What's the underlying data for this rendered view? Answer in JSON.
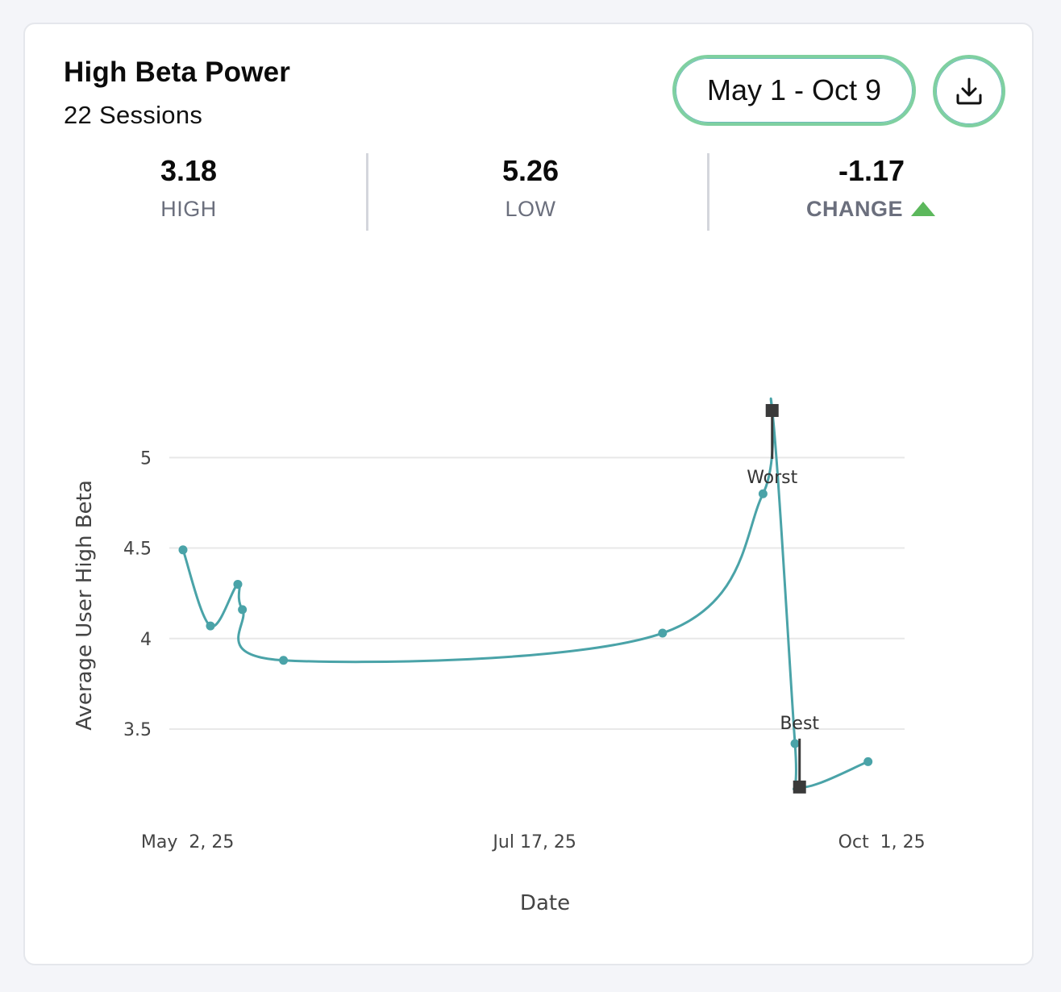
{
  "card": {
    "title": "High Beta Power",
    "subtitle": "22 Sessions",
    "date_range": "May 1 - Oct 9",
    "download_icon": "download-icon"
  },
  "stats": {
    "high": {
      "value": "3.18",
      "label": "HIGH"
    },
    "low": {
      "value": "5.26",
      "label": "LOW"
    },
    "change": {
      "value": "-1.17",
      "label": "CHANGE",
      "indicator": "up-triangle-icon",
      "indicator_color": "#5cb85c"
    }
  },
  "colors": {
    "line": "#4aa3a8",
    "marker": "#3a3a3a",
    "grid": "#e8e8e8"
  },
  "chart_data": {
    "type": "line",
    "xlabel": "Date",
    "ylabel": "Average User High Beta",
    "x_ticks": [
      "May  2, 25",
      "Jul 17, 25",
      "Oct  1, 25"
    ],
    "y_ticks": [
      "3.5",
      "4",
      "4.5",
      "5"
    ],
    "ylim": [
      3.05,
      5.3
    ],
    "xlim": [
      "2025-04-28",
      "2025-10-06"
    ],
    "grid": true,
    "series": [
      {
        "x": [
          "2025-05-01",
          "2025-05-07",
          "2025-05-13",
          "2025-05-14",
          "2025-05-23",
          "2025-08-14",
          "2025-09-05",
          "2025-09-07",
          "2025-09-12",
          "2025-09-13",
          "2025-09-28"
        ],
        "values": [
          4.49,
          4.07,
          4.3,
          4.16,
          3.88,
          4.03,
          4.8,
          5.26,
          3.42,
          3.18,
          3.32
        ]
      }
    ],
    "annotations": [
      {
        "text": "Worst",
        "x": "2025-09-07",
        "y": 5.26
      },
      {
        "text": "Best",
        "x": "2025-09-13",
        "y": 3.18
      }
    ]
  }
}
